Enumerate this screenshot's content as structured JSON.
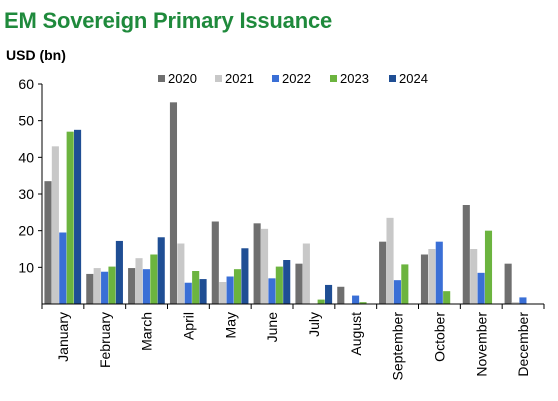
{
  "chart_title": "EM Sovereign Primary Issuance",
  "unit_label": "USD (bn)",
  "chart_data": {
    "type": "bar",
    "title": "EM Sovereign Primary Issuance",
    "ylabel": "USD (bn)",
    "xlabel": "",
    "ylim": [
      0,
      60
    ],
    "yticks": [
      10,
      20,
      30,
      40,
      50,
      60
    ],
    "grid": false,
    "legend_position": "top",
    "categories": [
      "January",
      "February",
      "March",
      "April",
      "May",
      "June",
      "July",
      "August",
      "September",
      "October",
      "November",
      "December"
    ],
    "series": [
      {
        "name": "2020",
        "color": "#6f6f6f",
        "values": [
          33.5,
          8.2,
          9.8,
          55,
          22.5,
          22,
          11,
          4.7,
          17,
          13.5,
          27,
          11
        ]
      },
      {
        "name": "2021",
        "color": "#c8c8c8",
        "values": [
          43,
          9.8,
          12.5,
          16.5,
          6,
          20.5,
          16.5,
          0,
          23.5,
          15,
          15,
          0.5
        ]
      },
      {
        "name": "2022",
        "color": "#3a6fd6",
        "values": [
          19.5,
          8.8,
          9.5,
          5.8,
          7.5,
          7,
          0,
          2.3,
          6.5,
          17,
          8.5,
          1.8
        ]
      },
      {
        "name": "2023",
        "color": "#6cb43f",
        "values": [
          47,
          10.2,
          13.5,
          9,
          9.5,
          10.2,
          1.2,
          0.5,
          10.8,
          3.5,
          20,
          0
        ]
      },
      {
        "name": "2024",
        "color": "#1f4e94",
        "values": [
          47.5,
          17.2,
          18.2,
          6.8,
          15.2,
          12,
          5.2,
          0,
          0,
          0,
          0,
          0
        ]
      }
    ]
  }
}
